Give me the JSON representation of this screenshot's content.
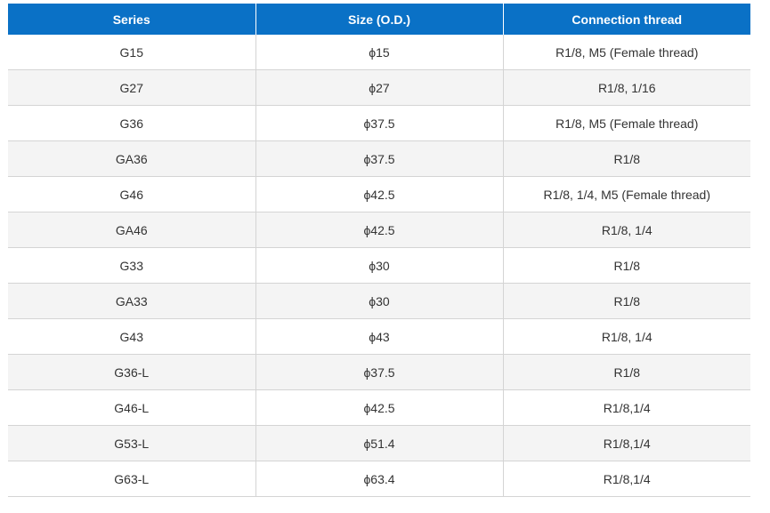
{
  "table": {
    "headers": [
      "Series",
      "Size (O.D.)",
      "Connection thread"
    ],
    "rows": [
      [
        "G15",
        "ϕ15",
        "R1/8, M5 (Female thread)"
      ],
      [
        "G27",
        "ϕ27",
        "R1/8, 1/16"
      ],
      [
        "G36",
        "ϕ37.5",
        "R1/8, M5 (Female thread)"
      ],
      [
        "GA36",
        "ϕ37.5",
        "R1/8"
      ],
      [
        "G46",
        "ϕ42.5",
        "R1/8, 1/4, M5 (Female thread)"
      ],
      [
        "GA46",
        "ϕ42.5",
        "R1/8, 1/4"
      ],
      [
        "G33",
        "ϕ30",
        "R1/8"
      ],
      [
        "GA33",
        "ϕ30",
        "R1/8"
      ],
      [
        "G43",
        "ϕ43",
        "R1/8, 1/4"
      ],
      [
        "G36-L",
        "ϕ37.5",
        "R1/8"
      ],
      [
        "G46-L",
        "ϕ42.5",
        "R1/8,1/4"
      ],
      [
        "G53-L",
        "ϕ51.4",
        "R1/8,1/4"
      ],
      [
        "G63-L",
        "ϕ63.4",
        "R1/8,1/4"
      ]
    ]
  },
  "colors": {
    "header_bg": "#0a71c6",
    "stripe_bg": "#f4f4f4",
    "border": "#d4d4d4"
  }
}
